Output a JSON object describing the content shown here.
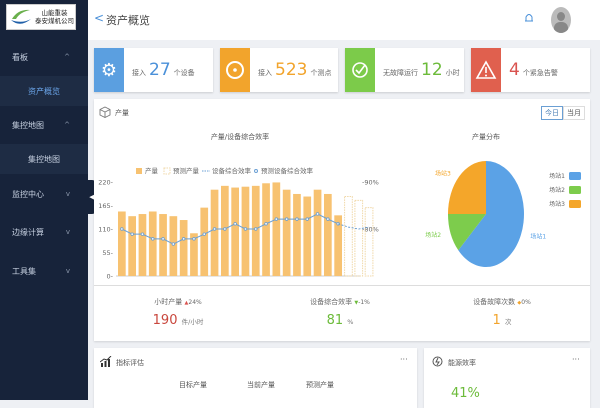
{
  "logo": {
    "line1": "山能重装",
    "line2": "泰安煤机公司"
  },
  "sidebar": {
    "items": [
      {
        "label": "看板",
        "chevron": "^",
        "children": [
          {
            "label": "资产概览",
            "active": true
          }
        ]
      },
      {
        "label": "集控地图",
        "chevron": "^",
        "children": [
          {
            "label": "集控地图",
            "active": false
          }
        ]
      },
      {
        "label": "监控中心",
        "chevron": "v"
      },
      {
        "label": "边缘计算",
        "chevron": "v"
      },
      {
        "label": "工具集",
        "chevron": "v"
      }
    ]
  },
  "header": {
    "back": "<",
    "title": "资产概览",
    "bell_icon": "bell-icon",
    "avatar": "user-avatar"
  },
  "cards": [
    {
      "icon": "gear-icon",
      "color": "#5b9fe0",
      "prefix": "接入",
      "value": "27",
      "suffix": "个设备",
      "value_color": "#4a90d9"
    },
    {
      "icon": "target-icon",
      "color": "#f2a42c",
      "prefix": "接入",
      "value": "523",
      "suffix": "个测点",
      "value_color": "#f2a42c"
    },
    {
      "icon": "clock-check-icon",
      "color": "#7ccb4a",
      "prefix": "无故障运行",
      "value": "12",
      "suffix": "小时",
      "value_color": "#6cbb3a"
    },
    {
      "icon": "warning-icon",
      "color": "#e0604e",
      "prefix": "",
      "value": "4",
      "suffix": "个紧急告警",
      "value_color": "#d9534f"
    }
  ],
  "production": {
    "title": "产量",
    "toggle": [
      "今日",
      "当月"
    ],
    "toggle_active": 0
  },
  "chart_data": [
    {
      "type": "bar",
      "title": "产量/设备综合效率",
      "legend": [
        "产量",
        "预测产量",
        "设备综合效率",
        "预测设备综合效率"
      ],
      "yticks": [
        "0",
        "55",
        "110",
        "165",
        "220"
      ],
      "ylim": [
        0,
        220
      ],
      "y2ticks": [
        "80%",
        "90%"
      ],
      "production": [
        151,
        140,
        145,
        151,
        145,
        140,
        131,
        100,
        160,
        202,
        211,
        207,
        209,
        211,
        217,
        219,
        202,
        192,
        186,
        202,
        192,
        142
      ],
      "forecast_production": [
        186,
        177,
        160
      ],
      "efficiency": [
        80,
        78.9,
        78.9,
        77.9,
        77.9,
        76.8,
        77.9,
        77.9,
        78.9,
        80,
        80,
        81.1,
        80,
        80,
        81.1,
        82.1,
        82.1,
        82.1,
        82.1,
        83.2,
        82.1,
        81.1
      ],
      "forecast_efficiency": [
        80.4,
        80,
        80.4
      ],
      "colors": {
        "bar": "#f7c271",
        "line": "#6a9fd4"
      }
    },
    {
      "type": "pie",
      "title": "产量分布",
      "slices": [
        {
          "name": "场站1",
          "value": 63,
          "color": "#5ba2e6"
        },
        {
          "name": "场站2",
          "value": 12,
          "color": "#7dcc4c"
        },
        {
          "name": "场站3",
          "value": 25,
          "color": "#f4a62a"
        }
      ],
      "legend_position": "right"
    }
  ],
  "kpis": [
    {
      "label": "小时产量",
      "trend": "▲",
      "change": "24%",
      "value": "190",
      "unit": "件/小时",
      "color": "#c9473d",
      "trend_color": "#d9534f"
    },
    {
      "label": "设备综合效率",
      "trend": "▼",
      "change": "-1%",
      "value": "81",
      "unit": "%",
      "color": "#6cbb3a",
      "trend_color": "#6cbb3a"
    },
    {
      "label": "设备故障次数",
      "trend": "◆",
      "change": "0%",
      "value": "1",
      "unit": "次",
      "color": "#f2a42c",
      "trend_color": "#f2a42c"
    }
  ],
  "assessment": {
    "title": "指标评估",
    "more": "···",
    "columns": [
      "目标产量",
      "当前产量",
      "预测产量"
    ]
  },
  "energy": {
    "title": "能源效率",
    "more": "···",
    "value": "41%"
  }
}
